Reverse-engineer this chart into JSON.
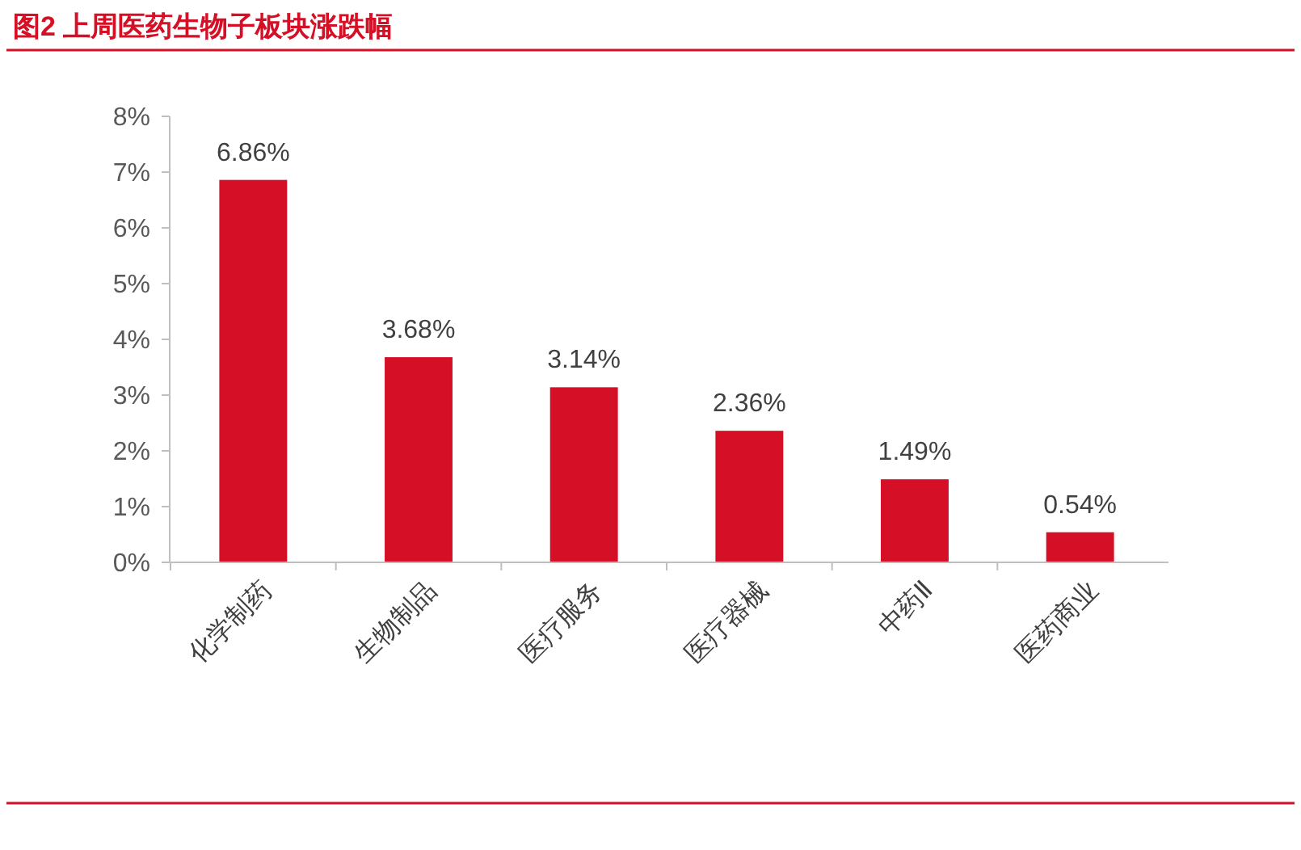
{
  "chart_data": {
    "type": "bar",
    "title": "图2  上周医药生物子板块涨跌幅",
    "categories": [
      "化学制药",
      "生物制品",
      "医疗服务",
      "医疗器械",
      "中药Ⅱ",
      "医药商业"
    ],
    "values": [
      6.86,
      3.68,
      3.14,
      2.36,
      1.49,
      0.54
    ],
    "value_labels": [
      "6.86%",
      "3.68%",
      "3.14%",
      "2.36%",
      "1.49%",
      "0.54%"
    ],
    "color": "#d50f25",
    "ylim": [
      0,
      8
    ],
    "yticks": [
      {
        "value": 0,
        "label": "0%"
      },
      {
        "value": 1,
        "label": "1%"
      },
      {
        "value": 2,
        "label": "2%"
      },
      {
        "value": 3,
        "label": "3%"
      },
      {
        "value": 4,
        "label": "4%"
      },
      {
        "value": 5,
        "label": "5%"
      },
      {
        "value": 6,
        "label": "6%"
      },
      {
        "value": 7,
        "label": "7%"
      },
      {
        "value": 8,
        "label": "8%"
      }
    ],
    "grid": false
  }
}
